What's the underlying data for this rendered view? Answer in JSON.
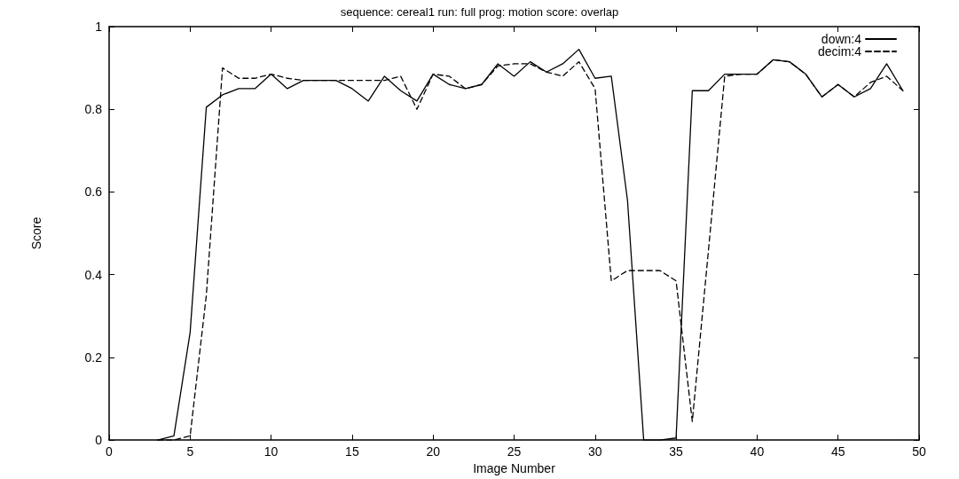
{
  "chart_data": {
    "type": "line",
    "title": "sequence: cereal1 run: full prog: motion score: overlap",
    "xlabel": "Image Number",
    "ylabel": "Score",
    "x": [
      3,
      4,
      5,
      6,
      7,
      8,
      9,
      10,
      11,
      12,
      13,
      14,
      15,
      16,
      17,
      18,
      19,
      20,
      21,
      22,
      23,
      24,
      25,
      26,
      27,
      28,
      29,
      30,
      31,
      32,
      33,
      34,
      35,
      36,
      37,
      38,
      39,
      40,
      41,
      42,
      43,
      44,
      45,
      46,
      47,
      48,
      49
    ],
    "series": [
      {
        "name": "down:4",
        "color": "#000000",
        "line_style": "solid",
        "values": [
          0,
          0.01,
          0.26,
          0.805,
          0.835,
          0.85,
          0.85,
          0.885,
          0.85,
          0.87,
          0.87,
          0.87,
          0.85,
          0.82,
          0.88,
          0.845,
          0.82,
          0.885,
          0.86,
          0.85,
          0.86,
          0.91,
          0.88,
          0.915,
          0.89,
          0.91,
          0.945,
          0.875,
          0.88,
          0.58,
          0,
          0,
          0.005,
          0.845,
          0.845,
          0.885,
          0.885,
          0.885,
          0.92,
          0.915,
          0.885,
          0.83,
          0.86,
          0.83,
          0.85,
          0.91,
          0.845
        ]
      },
      {
        "name": "decim:4",
        "color": "#000000",
        "line_style": "dashed",
        "values": [
          0,
          0,
          0.01,
          0.35,
          0.9,
          0.875,
          0.875,
          0.885,
          0.875,
          0.87,
          0.87,
          0.87,
          0.87,
          0.87,
          0.87,
          0.88,
          0.8,
          0.885,
          0.88,
          0.85,
          0.86,
          0.905,
          0.91,
          0.91,
          0.89,
          0.88,
          0.915,
          0.85,
          0.385,
          0.41,
          0.41,
          0.41,
          0.385,
          0.045,
          0.46,
          0.88,
          0.885,
          0.885,
          0.92,
          0.915,
          0.885,
          0.83,
          0.86,
          0.83,
          0.865,
          0.88,
          0.845
        ]
      }
    ],
    "xlim": [
      0,
      50
    ],
    "xticks": [
      0,
      5,
      10,
      15,
      20,
      25,
      30,
      35,
      40,
      45,
      50
    ],
    "ylim": [
      0,
      1
    ],
    "yticks": [
      0,
      0.2,
      0.4,
      0.6,
      0.8,
      1
    ],
    "grid": false,
    "legend": "top right",
    "marker": "none"
  }
}
